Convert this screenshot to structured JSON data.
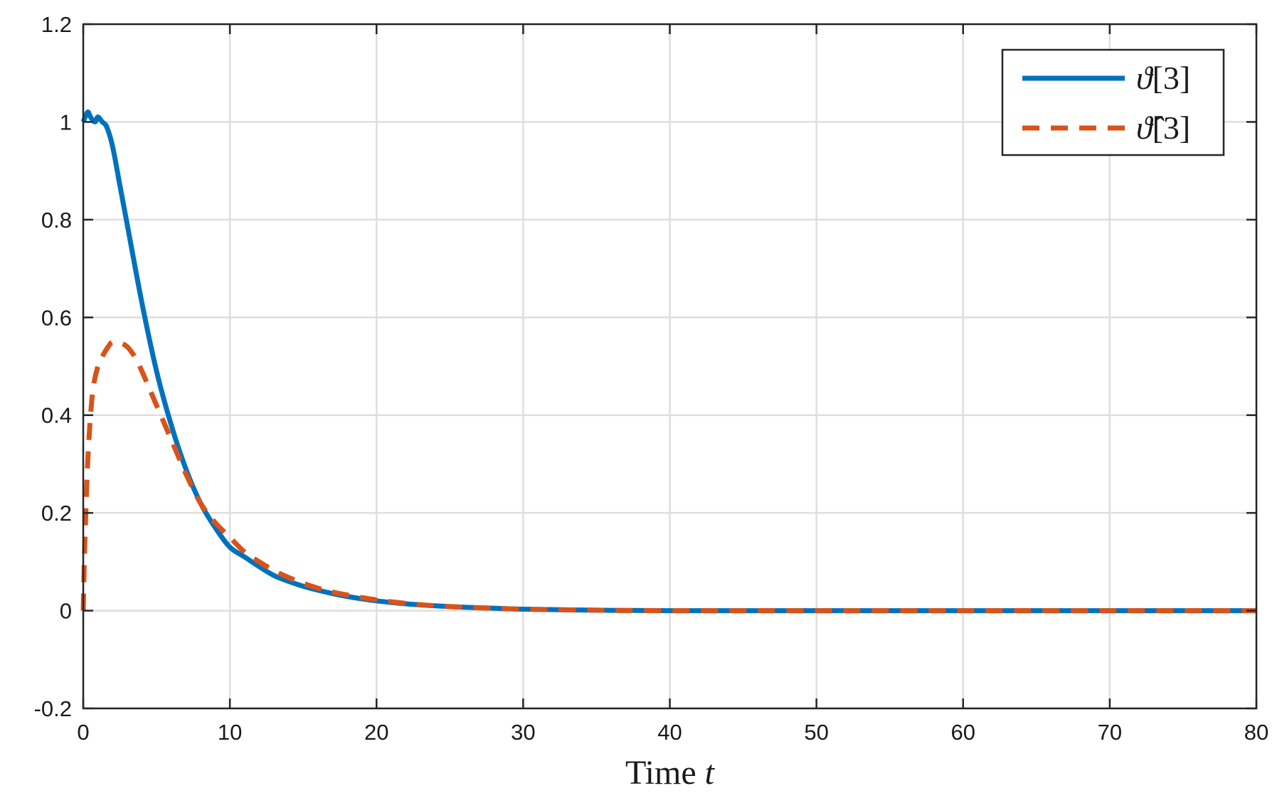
{
  "chart_data": {
    "type": "line",
    "xlabel_text": "Time ",
    "xlabel_var": "t",
    "xlim": [
      0,
      80
    ],
    "ylim": [
      -0.2,
      1.2
    ],
    "xticks": [
      0,
      10,
      20,
      30,
      40,
      50,
      60,
      70,
      80
    ],
    "xtick_labels": [
      "0",
      "10",
      "20",
      "30",
      "40",
      "50",
      "60",
      "70",
      "80"
    ],
    "yticks": [
      -0.2,
      0,
      0.2,
      0.4,
      0.6,
      0.8,
      1,
      1.2
    ],
    "ytick_labels": [
      "-0.2",
      "0",
      "0.2",
      "0.4",
      "0.6",
      "0.8",
      "1",
      "1.2"
    ],
    "grid": true,
    "legend_position": "top-right",
    "series": [
      {
        "name": "ϑ[3]",
        "name_symbol": "ϑ",
        "name_index": "[3]",
        "style": "solid",
        "color": "#0072BD",
        "x": [
          0,
          0.3,
          0.5,
          0.8,
          1,
          1.3,
          1.6,
          2,
          2.5,
          3,
          4,
          5,
          6,
          7,
          8,
          9,
          10,
          11,
          12,
          13,
          14,
          15,
          16,
          17,
          18,
          20,
          22,
          24,
          26,
          28,
          30,
          35,
          40,
          50,
          60,
          70,
          80
        ],
        "y": [
          1.0,
          1.02,
          1.01,
          1.0,
          1.01,
          1.0,
          0.99,
          0.95,
          0.87,
          0.79,
          0.63,
          0.49,
          0.38,
          0.29,
          0.22,
          0.17,
          0.13,
          0.11,
          0.09,
          0.072,
          0.06,
          0.05,
          0.042,
          0.035,
          0.029,
          0.02,
          0.014,
          0.01,
          0.007,
          0.005,
          0.003,
          0.001,
          0.0,
          0.0,
          0.0,
          0.0,
          0.0
        ]
      },
      {
        "name": "ϑ̂[3]",
        "name_symbol": "ϑ̂",
        "name_index": "[3]",
        "style": "dashed",
        "color": "#D95319",
        "x": [
          0,
          0.1,
          0.3,
          0.5,
          0.7,
          1,
          1.3,
          1.7,
          2,
          2.5,
          3,
          3.5,
          4,
          5,
          6,
          7,
          8,
          9,
          10,
          11,
          12,
          13,
          14,
          15,
          16,
          17,
          18,
          20,
          22,
          24,
          26,
          28,
          30,
          35,
          40,
          50,
          60,
          70,
          80
        ],
        "y": [
          0.0,
          0.13,
          0.3,
          0.4,
          0.46,
          0.5,
          0.52,
          0.54,
          0.55,
          0.548,
          0.54,
          0.52,
          0.49,
          0.42,
          0.35,
          0.28,
          0.22,
          0.18,
          0.15,
          0.12,
          0.1,
          0.082,
          0.068,
          0.056,
          0.046,
          0.038,
          0.032,
          0.022,
          0.015,
          0.01,
          0.007,
          0.005,
          0.003,
          0.001,
          0.0,
          0.0,
          0.0,
          0.0,
          0.0
        ]
      }
    ]
  }
}
